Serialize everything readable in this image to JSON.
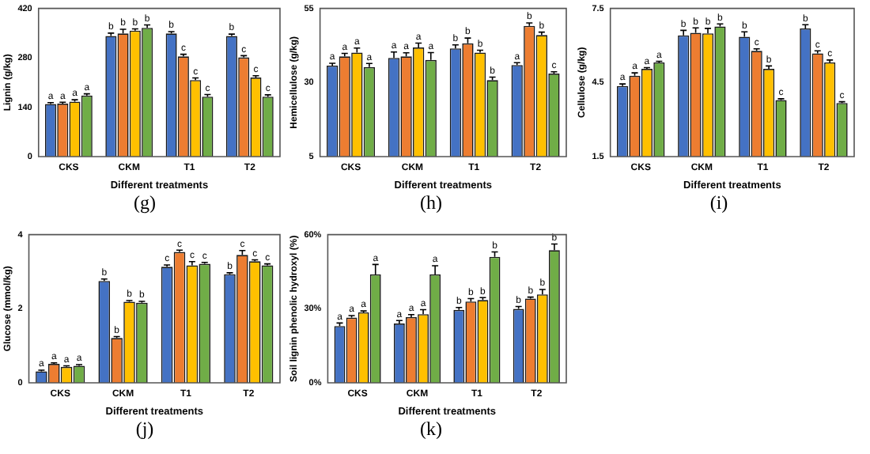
{
  "chart_data": [
    {
      "type": "bar",
      "xlabel": "Different treatments",
      "ylabel": "Lignin (g/kg)",
      "categories": [
        "CKS",
        "CKM",
        "T1",
        "T2"
      ],
      "ylim": [
        0,
        420
      ],
      "yticks": [
        0,
        140,
        280,
        420
      ],
      "grid": false,
      "legend": false,
      "annotations": [
        "(g)"
      ],
      "series": [
        {
          "color": "#4472c4",
          "values": [
            149,
            342,
            349,
            342
          ],
          "errors": [
            4,
            8,
            5,
            5
          ],
          "value_labels": [
            "a",
            "b",
            "b",
            "b"
          ]
        },
        {
          "color": "#ed7d31",
          "values": [
            150,
            349,
            284,
            281
          ],
          "errors": [
            4,
            12,
            6,
            5
          ],
          "value_labels": [
            "a",
            "b",
            "c",
            "c"
          ]
        },
        {
          "color": "#ffc000",
          "values": [
            156,
            357,
            217,
            224
          ],
          "errors": [
            5,
            5,
            6,
            5
          ],
          "value_labels": [
            "a",
            "b",
            "c",
            "c"
          ]
        },
        {
          "color": "#70ad47",
          "values": [
            173,
            365,
            170,
            170
          ],
          "errors": [
            5,
            8,
            6,
            5
          ],
          "value_labels": [
            "a",
            "b",
            "c",
            "c"
          ]
        }
      ]
    },
    {
      "type": "bar",
      "xlabel": "Different treatments",
      "ylabel": "Hemicellulose (g/kg)",
      "categories": [
        "CKS",
        "CKM",
        "T1",
        "T2"
      ],
      "ylim": [
        5,
        55
      ],
      "yticks": [
        5,
        30,
        55
      ],
      "grid": false,
      "legend": false,
      "annotations": [
        "(h)"
      ],
      "series": [
        {
          "color": "#4472c4",
          "values": [
            35.7,
            38.3,
            41.5,
            35.9
          ],
          "errors": [
            0.8,
            2,
            1.2,
            0.8
          ],
          "value_labels": [
            "a",
            "a",
            "b",
            "a"
          ]
        },
        {
          "color": "#ed7d31",
          "values": [
            38.8,
            38.8,
            43.2,
            49.1
          ],
          "errors": [
            1,
            1.2,
            1.8,
            1
          ],
          "value_labels": [
            "a",
            "a",
            "b",
            "b"
          ]
        },
        {
          "color": "#ffc000",
          "values": [
            40.1,
            41.8,
            40.1,
            46
          ],
          "errors": [
            1.5,
            1.5,
            0.8,
            1
          ],
          "value_labels": [
            "a",
            "a",
            "b",
            "b"
          ]
        },
        {
          "color": "#70ad47",
          "values": [
            35.2,
            37.6,
            30.8,
            33
          ],
          "errors": [
            1.2,
            2.5,
            1,
            0.6
          ],
          "value_labels": [
            "a",
            "a",
            "b",
            "c"
          ]
        }
      ]
    },
    {
      "type": "bar",
      "xlabel": "Different treatments",
      "ylabel": "Cellulose (g/kg)",
      "categories": [
        "CKS",
        "CKM",
        "T1",
        "T2"
      ],
      "ylim": [
        1.5,
        7.5
      ],
      "yticks": [
        1.5,
        4.5,
        7.5
      ],
      "grid": false,
      "legend": false,
      "annotations": [
        "(i)"
      ],
      "series": [
        {
          "color": "#4472c4",
          "values": [
            4.36,
            6.41,
            6.35,
            6.69
          ],
          "errors": [
            0.08,
            0.2,
            0.2,
            0.15
          ],
          "value_labels": [
            "a",
            "b",
            "b",
            "b"
          ]
        },
        {
          "color": "#ed7d31",
          "values": [
            4.77,
            6.51,
            5.78,
            5.68
          ],
          "errors": [
            0.12,
            0.2,
            0.08,
            0.1
          ],
          "value_labels": [
            "a",
            "b",
            "c",
            "c"
          ]
        },
        {
          "color": "#ffc000",
          "values": [
            5.05,
            6.49,
            5.05,
            5.31
          ],
          "errors": [
            0.05,
            0.2,
            0.12,
            0.1
          ],
          "value_labels": [
            "a",
            "b",
            "b",
            "c"
          ]
        },
        {
          "color": "#70ad47",
          "values": [
            5.31,
            6.77,
            3.79,
            3.67
          ],
          "errors": [
            0.05,
            0.1,
            0.05,
            0.05
          ],
          "value_labels": [
            "a",
            "b",
            "c",
            "c"
          ]
        }
      ]
    },
    {
      "type": "bar",
      "xlabel": "Different treatments",
      "ylabel": "Glucose (mmol/kg)",
      "categories": [
        "CKS",
        "CKM",
        "T1",
        "T2"
      ],
      "ylim": [
        0,
        4
      ],
      "yticks": [
        0,
        2,
        4
      ],
      "grid": false,
      "legend": false,
      "annotations": [
        "(j)"
      ],
      "series": [
        {
          "color": "#4472c4",
          "values": [
            0.31,
            2.75,
            3.13,
            2.93
          ],
          "errors": [
            0.03,
            0.05,
            0.05,
            0.04
          ],
          "value_labels": [
            "a",
            "b",
            "c",
            "b"
          ]
        },
        {
          "color": "#ed7d31",
          "values": [
            0.51,
            1.21,
            3.53,
            3.45
          ],
          "errors": [
            0.03,
            0.04,
            0.05,
            0.12
          ],
          "value_labels": [
            "a",
            "b",
            "c",
            "c"
          ]
        },
        {
          "color": "#ffc000",
          "values": [
            0.43,
            2.19,
            3.17,
            3.28
          ],
          "errors": [
            0.03,
            0.03,
            0.1,
            0.04
          ],
          "value_labels": [
            "a",
            "b",
            "c",
            "c"
          ]
        },
        {
          "color": "#70ad47",
          "values": [
            0.46,
            2.16,
            3.21,
            3.17
          ],
          "errors": [
            0.03,
            0.04,
            0.04,
            0.04
          ],
          "value_labels": [
            "a",
            "b",
            "c",
            "c"
          ]
        }
      ]
    },
    {
      "type": "bar",
      "xlabel": "Different treatments",
      "ylabel": "Soil lignin phenolic hydroxyl (%)",
      "categories": [
        "CKS",
        "CKM",
        "T1",
        "T2"
      ],
      "ylim": [
        0,
        60
      ],
      "yticks": [
        {
          "value": 0,
          "label": "0%"
        },
        {
          "value": 30,
          "label": "30%"
        },
        {
          "value": 60,
          "label": "60%"
        }
      ],
      "grid": false,
      "legend": false,
      "annotations": [
        "(k)"
      ],
      "series": [
        {
          "color": "#4472c4",
          "values": [
            23.0,
            24.0,
            29.5,
            29.9
          ],
          "errors": [
            1.2,
            1.2,
            1,
            1
          ],
          "value_labels": [
            "a",
            "a",
            "b",
            "b"
          ]
        },
        {
          "color": "#ed7d31",
          "values": [
            26.4,
            26.6,
            32.9,
            34.1
          ],
          "errors": [
            0.8,
            1,
            1.2,
            0.6
          ],
          "value_labels": [
            "a",
            "a",
            "b",
            "b"
          ]
        },
        {
          "color": "#ffc000",
          "values": [
            28.5,
            27.8,
            33.5,
            35.8
          ],
          "errors": [
            0.6,
            1.8,
            1,
            2
          ],
          "value_labels": [
            "a",
            "a",
            "b",
            "b"
          ]
        },
        {
          "color": "#70ad47",
          "values": [
            43.9,
            43.9,
            51.0,
            53.7
          ],
          "errors": [
            4,
            3.5,
            2,
            2.5
          ],
          "value_labels": [
            "a",
            "a",
            "b",
            "b"
          ]
        }
      ]
    }
  ]
}
